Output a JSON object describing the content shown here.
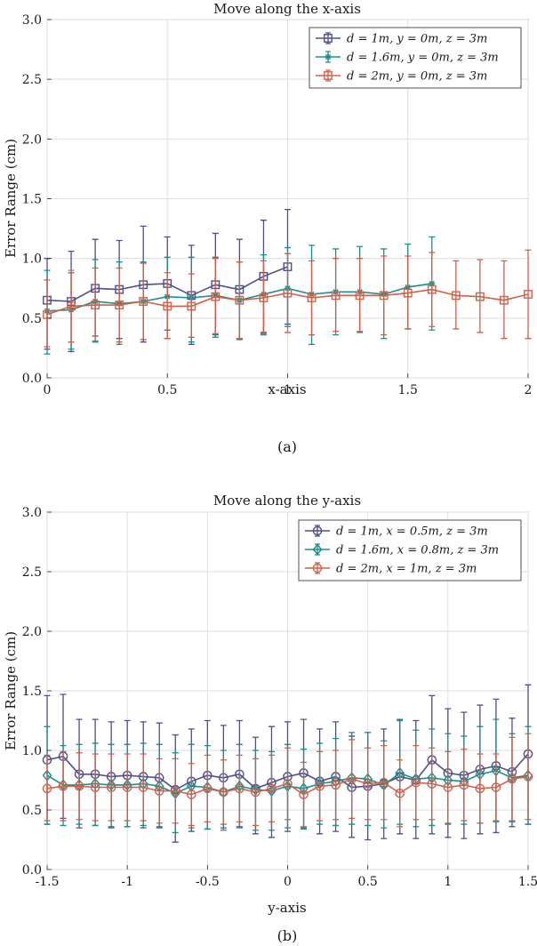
{
  "chart_data": [
    {
      "type": "line",
      "title": "Move along the x-axis",
      "xlabel": "x-axis",
      "ylabel": "Error Range (cm)",
      "caption": "(a)",
      "xlim": [
        0,
        2
      ],
      "ylim": [
        0,
        3
      ],
      "grid": true,
      "legend_position": "top-right",
      "xticks": [
        0,
        0.5,
        1,
        1.5,
        2
      ],
      "xtick_labels": [
        "0",
        "0.5",
        "1",
        "1.5",
        "2"
      ],
      "yticks": [
        0,
        0.5,
        1,
        1.5,
        2,
        2.5,
        3
      ],
      "ytick_labels": [
        "0.0",
        "0.5",
        "1.0",
        "1.5",
        "2.0",
        "2.5",
        "3.0"
      ],
      "series": [
        {
          "name": "d = 1m, y = 0m, z = 3m",
          "color": "#4d4f8a",
          "marker": "square",
          "x": [
            0,
            0.1,
            0.2,
            0.3,
            0.4,
            0.5,
            0.6,
            0.7,
            0.8,
            0.9,
            1.0
          ],
          "values": [
            0.65,
            0.64,
            0.75,
            0.74,
            0.78,
            0.79,
            0.69,
            0.78,
            0.74,
            0.85,
            0.93
          ],
          "err_low": [
            0.24,
            0.22,
            0.35,
            0.33,
            0.3,
            0.4,
            0.28,
            0.36,
            0.33,
            0.38,
            0.45
          ],
          "err_high": [
            1.0,
            1.06,
            1.16,
            1.15,
            1.27,
            1.18,
            1.11,
            1.21,
            1.16,
            1.32,
            1.41
          ]
        },
        {
          "name": "d = 1.6m, y = 0m, z = 3m",
          "color": "#1a8f8a",
          "marker": "asterisk",
          "x": [
            0,
            0.1,
            0.2,
            0.3,
            0.4,
            0.5,
            0.6,
            0.7,
            0.8,
            0.9,
            1.0,
            1.1,
            1.2,
            1.3,
            1.4,
            1.5,
            1.6
          ],
          "values": [
            0.56,
            0.57,
            0.64,
            0.62,
            0.64,
            0.68,
            0.67,
            0.69,
            0.65,
            0.7,
            0.75,
            0.7,
            0.72,
            0.72,
            0.7,
            0.76,
            0.79
          ],
          "err_low": [
            0.2,
            0.24,
            0.3,
            0.28,
            0.32,
            0.33,
            0.3,
            0.34,
            0.32,
            0.36,
            0.43,
            0.28,
            0.36,
            0.38,
            0.33,
            0.41,
            0.4
          ],
          "err_high": [
            0.9,
            0.88,
            0.99,
            0.97,
            0.97,
            1.01,
            1.01,
            1.01,
            0.97,
            1.03,
            1.09,
            1.11,
            1.08,
            1.1,
            1.08,
            1.12,
            1.18
          ]
        },
        {
          "name": "d = 2m, y = 0m, z = 3m",
          "color": "#d0604a",
          "marker": "square",
          "x": [
            0,
            0.1,
            0.2,
            0.3,
            0.4,
            0.5,
            0.6,
            0.7,
            0.8,
            0.9,
            1.0,
            1.1,
            1.2,
            1.3,
            1.4,
            1.5,
            1.6,
            1.7,
            1.8,
            1.9,
            2.0
          ],
          "values": [
            0.53,
            0.6,
            0.61,
            0.61,
            0.64,
            0.6,
            0.6,
            0.68,
            0.65,
            0.67,
            0.71,
            0.67,
            0.69,
            0.69,
            0.69,
            0.71,
            0.74,
            0.69,
            0.68,
            0.65,
            0.7
          ],
          "err_low": [
            0.26,
            0.3,
            0.31,
            0.3,
            0.32,
            0.33,
            0.34,
            0.37,
            0.33,
            0.37,
            0.38,
            0.36,
            0.39,
            0.39,
            0.36,
            0.41,
            0.43,
            0.41,
            0.38,
            0.33,
            0.33
          ],
          "err_high": [
            0.82,
            0.9,
            0.92,
            0.92,
            0.96,
            0.88,
            0.87,
            1.0,
            0.97,
            0.98,
            1.04,
            0.98,
            1.0,
            1.0,
            1.02,
            1.02,
            1.05,
            0.98,
            0.99,
            0.98,
            1.07
          ]
        }
      ]
    },
    {
      "type": "line",
      "title": "Move along the y-axis",
      "xlabel": "y-axis",
      "ylabel": "Error Range (cm)",
      "caption": "(b)",
      "xlim": [
        -1.5,
        1.5
      ],
      "ylim": [
        0,
        3
      ],
      "grid": true,
      "legend_position": "top-right",
      "xticks": [
        -1.5,
        -1,
        -0.5,
        0,
        0.5,
        1,
        1.5
      ],
      "xtick_labels": [
        "-1.5",
        "-1",
        "-0.5",
        "0",
        "0.5",
        "1",
        "1.5"
      ],
      "yticks": [
        0,
        0.5,
        1,
        1.5,
        2,
        2.5,
        3
      ],
      "ytick_labels": [
        "0.0",
        "0.5",
        "1.0",
        "1.5",
        "2.0",
        "2.5",
        "3.0"
      ],
      "series": [
        {
          "name": "d = 1m, x = 0.5m, z = 3m",
          "color": "#4d4f8a",
          "marker": "circle",
          "x": [
            -1.5,
            -1.4,
            -1.3,
            -1.2,
            -1.1,
            -1.0,
            -0.9,
            -0.8,
            -0.7,
            -0.6,
            -0.5,
            -0.4,
            -0.3,
            -0.2,
            -0.1,
            0.0,
            0.1,
            0.2,
            0.3,
            0.4,
            0.5,
            0.6,
            0.7,
            0.8,
            0.9,
            1.0,
            1.1,
            1.2,
            1.3,
            1.4,
            1.5
          ],
          "values": [
            0.92,
            0.95,
            0.8,
            0.8,
            0.78,
            0.79,
            0.78,
            0.77,
            0.67,
            0.74,
            0.79,
            0.77,
            0.8,
            0.68,
            0.73,
            0.78,
            0.81,
            0.74,
            0.78,
            0.69,
            0.7,
            0.72,
            0.78,
            0.75,
            0.92,
            0.81,
            0.79,
            0.84,
            0.87,
            0.82,
            0.97
          ],
          "err_low": [
            0.38,
            0.43,
            0.35,
            0.37,
            0.35,
            0.36,
            0.35,
            0.35,
            0.23,
            0.32,
            0.34,
            0.35,
            0.36,
            0.3,
            0.27,
            0.32,
            0.35,
            0.3,
            0.32,
            0.27,
            0.25,
            0.26,
            0.3,
            0.26,
            0.3,
            0.27,
            0.26,
            0.3,
            0.31,
            0.36,
            0.38
          ],
          "err_high": [
            1.46,
            1.47,
            1.26,
            1.26,
            1.24,
            1.25,
            1.24,
            1.23,
            1.13,
            1.18,
            1.25,
            1.21,
            1.25,
            1.11,
            1.2,
            1.24,
            1.26,
            1.18,
            1.24,
            1.12,
            1.15,
            1.18,
            1.26,
            1.25,
            1.46,
            1.35,
            1.32,
            1.38,
            1.43,
            1.27,
            1.55
          ]
        },
        {
          "name": "d = 1.6m, x = 0.8m, z = 3m",
          "color": "#1a8f8a",
          "marker": "diamond",
          "x": [
            -1.5,
            -1.4,
            -1.3,
            -1.2,
            -1.1,
            -1.0,
            -0.9,
            -0.8,
            -0.7,
            -0.6,
            -0.5,
            -0.4,
            -0.3,
            -0.2,
            -0.1,
            0.0,
            0.1,
            0.2,
            0.3,
            0.4,
            0.5,
            0.6,
            0.7,
            0.8,
            0.9,
            1.0,
            1.1,
            1.2,
            1.3,
            1.4,
            1.5
          ],
          "values": [
            0.79,
            0.71,
            0.71,
            0.72,
            0.71,
            0.71,
            0.72,
            0.7,
            0.64,
            0.7,
            0.69,
            0.65,
            0.7,
            0.67,
            0.66,
            0.7,
            0.68,
            0.72,
            0.74,
            0.77,
            0.76,
            0.71,
            0.81,
            0.76,
            0.77,
            0.75,
            0.74,
            0.8,
            0.83,
            0.77,
            0.79
          ],
          "err_low": [
            0.38,
            0.37,
            0.38,
            0.37,
            0.36,
            0.36,
            0.37,
            0.36,
            0.31,
            0.35,
            0.34,
            0.33,
            0.35,
            0.33,
            0.33,
            0.35,
            0.34,
            0.38,
            0.37,
            0.38,
            0.37,
            0.35,
            0.38,
            0.36,
            0.37,
            0.38,
            0.38,
            0.39,
            0.4,
            0.4,
            0.38
          ],
          "err_high": [
            1.2,
            1.04,
            1.05,
            1.06,
            1.05,
            1.05,
            1.06,
            1.05,
            0.98,
            1.05,
            1.04,
            1.0,
            1.05,
            1.0,
            0.99,
            1.05,
            1.01,
            1.06,
            1.1,
            1.15,
            1.15,
            1.08,
            1.25,
            1.17,
            1.18,
            1.14,
            1.12,
            1.2,
            1.26,
            1.14,
            1.2
          ]
        },
        {
          "name": "d = 2m, x = 1m, z = 3m",
          "color": "#d0604a",
          "marker": "circle",
          "x": [
            -1.5,
            -1.4,
            -1.3,
            -1.2,
            -1.1,
            -1.0,
            -0.9,
            -0.8,
            -0.7,
            -0.6,
            -0.5,
            -0.4,
            -0.3,
            -0.2,
            -0.1,
            0.0,
            0.1,
            0.2,
            0.3,
            0.4,
            0.5,
            0.6,
            0.7,
            0.8,
            0.9,
            1.0,
            1.1,
            1.2,
            1.3,
            1.4,
            1.5
          ],
          "values": [
            0.68,
            0.7,
            0.7,
            0.69,
            0.69,
            0.69,
            0.69,
            0.66,
            0.66,
            0.63,
            0.68,
            0.65,
            0.68,
            0.65,
            0.68,
            0.72,
            0.63,
            0.7,
            0.71,
            0.76,
            0.72,
            0.73,
            0.64,
            0.73,
            0.72,
            0.69,
            0.71,
            0.68,
            0.69,
            0.76,
            0.78
          ],
          "err_low": [
            0.41,
            0.41,
            0.42,
            0.41,
            0.41,
            0.41,
            0.41,
            0.39,
            0.39,
            0.37,
            0.4,
            0.38,
            0.4,
            0.37,
            0.4,
            0.42,
            0.36,
            0.41,
            0.42,
            0.43,
            0.42,
            0.42,
            0.36,
            0.42,
            0.42,
            0.39,
            0.41,
            0.39,
            0.41,
            0.41,
            0.42
          ],
          "err_high": [
            0.96,
            0.99,
            0.98,
            0.97,
            0.97,
            0.97,
            0.97,
            0.93,
            0.93,
            0.89,
            0.96,
            0.92,
            0.96,
            0.93,
            0.96,
            1.02,
            0.9,
            0.99,
            1.0,
            1.09,
            1.02,
            1.04,
            0.92,
            1.04,
            1.02,
            0.99,
            1.01,
            0.97,
            0.97,
            1.11,
            1.14
          ]
        }
      ]
    }
  ]
}
